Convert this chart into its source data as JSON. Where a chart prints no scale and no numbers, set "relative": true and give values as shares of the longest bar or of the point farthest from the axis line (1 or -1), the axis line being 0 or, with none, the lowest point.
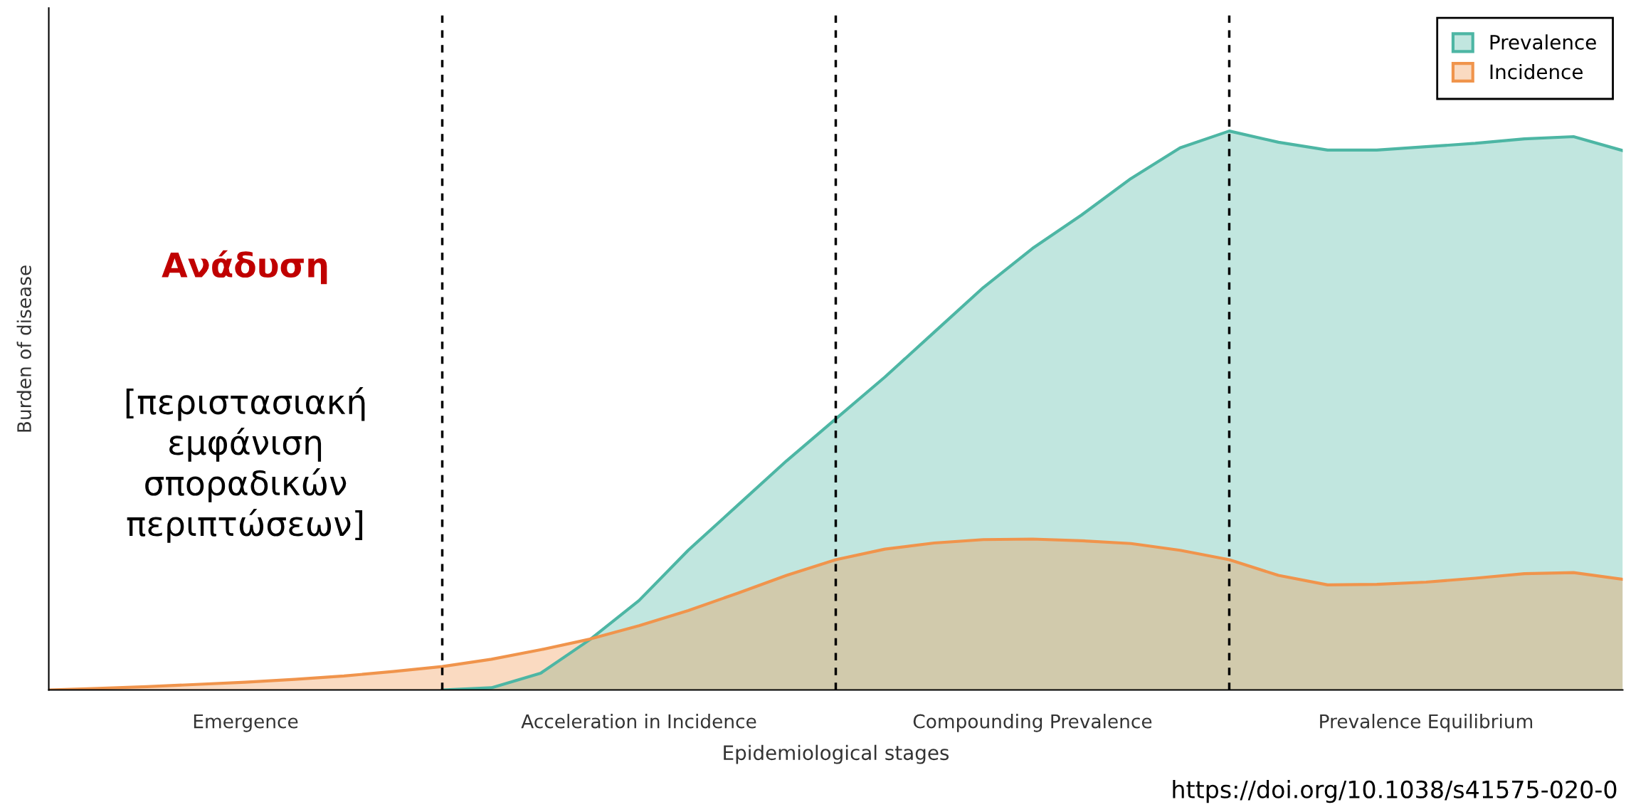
{
  "chart_data": {
    "type": "area",
    "relative": true,
    "xlabel": "Epidemiological stages",
    "ylabel": "Burden of disease",
    "categories": [
      null,
      null,
      null,
      null,
      null,
      null,
      null,
      null,
      null,
      null,
      null,
      null,
      null,
      null,
      null,
      null,
      null,
      null,
      null,
      null,
      null,
      null,
      null,
      null,
      null,
      null,
      null,
      null,
      null,
      null,
      null,
      null,
      null
    ],
    "series": [
      {
        "name": "Prevalence",
        "color": "#4db6a4",
        "values": [
          null,
          null,
          null,
          null,
          null,
          null,
          null,
          null,
          0,
          0.004,
          0.03,
          0.09,
          0.16,
          0.25,
          0.33,
          0.41,
          0.485,
          0.56,
          0.64,
          0.72,
          0.79,
          0.85,
          0.915,
          0.97,
          1.0,
          0.98,
          0.966,
          0.966,
          0.972,
          0.978,
          0.986,
          0.99,
          0.965
        ]
      },
      {
        "name": "Incidence",
        "color": "#f0944c",
        "values": [
          0,
          0.003,
          0.006,
          0.01,
          0.014,
          0.019,
          0.025,
          0.033,
          0.042,
          0.055,
          0.072,
          0.091,
          0.115,
          0.142,
          0.173,
          0.205,
          0.233,
          0.252,
          0.263,
          0.269,
          0.27,
          0.267,
          0.262,
          0.25,
          0.233,
          0.205,
          0.188,
          0.189,
          0.193,
          0.2,
          0.208,
          0.21,
          0.198
        ]
      }
    ],
    "annotations": [
      "Emergence",
      "Acceleration in Incidence",
      "Compounding Prevalence",
      "Prevalence Equilibrium",
      "Ανάδυση",
      "[περιστασιακή\nεμφάνιση\nσποραδικών\nπεριπτώσεων]",
      "https://doi.org/10.1038/s41575-020-0"
    ],
    "legend": "top right",
    "grid": "x"
  }
}
